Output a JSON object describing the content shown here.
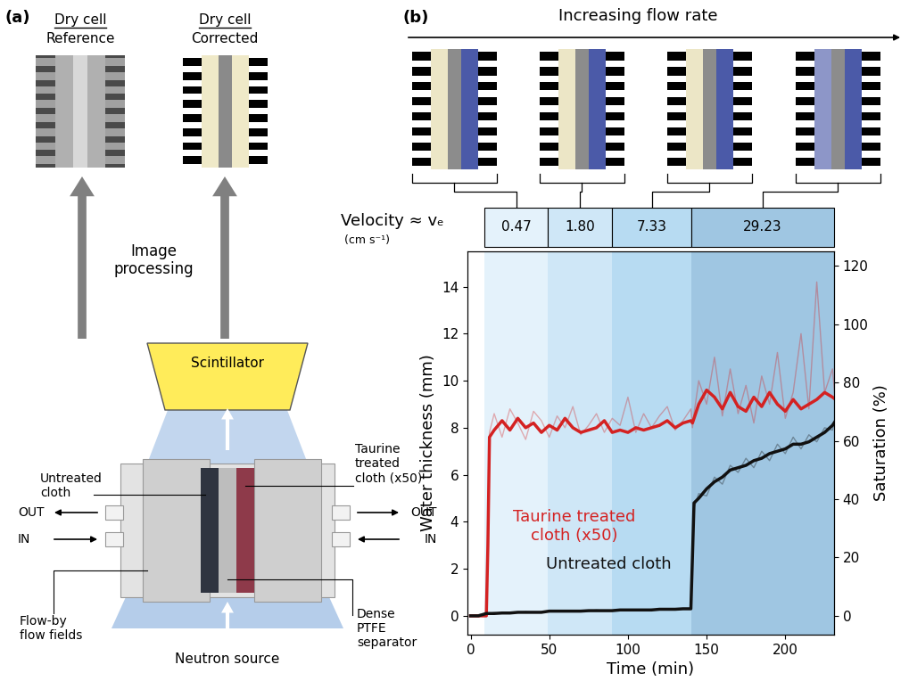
{
  "panel_labels": [
    "(a)",
    "(b)"
  ],
  "panel_a": {
    "images": [
      {
        "title": "Dry cell",
        "subtitle": "Reference"
      },
      {
        "title": "Dry cell",
        "subtitle": "Corrected"
      }
    ],
    "arrow_label": "Image\nprocessing",
    "scintillator": "Scintillator",
    "source": "Neutron source",
    "untreated": "Untreated\ncloth",
    "treated": "Taurine\ntreated\ncloth (x50)",
    "out": "OUT",
    "in": "IN",
    "flow_fields": "Flow-by\nflow fields",
    "separator": "Dense\nPTFE\nseparator"
  },
  "flow_header": "Increasing flow rate",
  "chart_data": {
    "type": "line",
    "xlabel": "Time (min)",
    "ylabel": "Water thickness (mm)",
    "y2label": "Saturation (%)",
    "xlim": [
      -2,
      231
    ],
    "ylim": [
      -0.8,
      15.5
    ],
    "y2lim": [
      -6.5,
      125
    ],
    "xticks": [
      0,
      50,
      100,
      150,
      200
    ],
    "yticks": [
      0,
      2,
      4,
      6,
      8,
      10,
      12,
      14
    ],
    "y2ticks": [
      0,
      20,
      40,
      60,
      80,
      100,
      120
    ],
    "grid": false,
    "velocity_header": {
      "label": "Velocity ≈ vₑ",
      "unit": "(cm s⁻¹)"
    },
    "velocity_regions": [
      {
        "start": 9,
        "end": 49,
        "velocity": 0.47,
        "velocity_label": "0.47",
        "color": "#e4f2fb"
      },
      {
        "start": 49,
        "end": 90,
        "velocity": 1.8,
        "velocity_label": "1.80",
        "color": "#cfe7f7"
      },
      {
        "start": 90,
        "end": 140.5,
        "velocity": 7.33,
        "velocity_label": "7.33",
        "color": "#b7dbf2"
      },
      {
        "start": 140.5,
        "end": 231,
        "velocity": 29.23,
        "velocity_label": "29.23",
        "color": "#9fc6e2"
      }
    ],
    "x": [
      0,
      5,
      10,
      11,
      12,
      15,
      20,
      25,
      30,
      35,
      40,
      45,
      50,
      55,
      60,
      65,
      70,
      75,
      80,
      85,
      90,
      95,
      100,
      105,
      110,
      115,
      120,
      125,
      130,
      135,
      140,
      141,
      142,
      145,
      150,
      155,
      160,
      165,
      170,
      175,
      180,
      185,
      190,
      195,
      200,
      205,
      210,
      215,
      220,
      225,
      230,
      232
    ],
    "series": [
      {
        "name": "Taurine treated\ncloth (x50)",
        "color": "#d42222",
        "values": [
          0,
          0,
          0,
          3,
          7.6,
          7.9,
          8.3,
          7.9,
          8.4,
          8.0,
          8.2,
          7.8,
          8.1,
          7.9,
          8.4,
          8.0,
          7.8,
          7.9,
          8.0,
          8.3,
          7.8,
          7.9,
          7.8,
          8.0,
          7.9,
          8.0,
          8.1,
          8.3,
          8.0,
          8.2,
          8.3,
          8.2,
          8.4,
          9.0,
          9.6,
          9.3,
          8.8,
          9.5,
          8.9,
          8.7,
          9.3,
          8.9,
          9.5,
          9.0,
          8.7,
          9.2,
          8.8,
          9.0,
          9.2,
          9.5,
          9.3,
          9.2
        ],
        "raw_values": [
          0,
          0,
          0,
          4,
          7.8,
          8.6,
          7.6,
          8.8,
          8.2,
          7.5,
          8.7,
          8.3,
          7.6,
          8.5,
          8.0,
          8.9,
          7.7,
          8.1,
          8.6,
          7.8,
          8.4,
          8.1,
          9.3,
          7.8,
          8.6,
          8.0,
          8.5,
          8.9,
          7.9,
          8.3,
          8.8,
          8.0,
          8.6,
          10.0,
          9.0,
          11.0,
          8.5,
          10.5,
          8.6,
          9.8,
          8.2,
          10.2,
          9.0,
          11.2,
          8.4,
          9.5,
          12.0,
          8.8,
          14.2,
          9.5,
          10.5,
          9.0
        ]
      },
      {
        "name": "Untreated cloth",
        "color": "#111111",
        "values": [
          0,
          0,
          0.1,
          0.1,
          0.1,
          0.1,
          0.12,
          0.12,
          0.15,
          0.15,
          0.15,
          0.15,
          0.2,
          0.2,
          0.2,
          0.2,
          0.2,
          0.22,
          0.22,
          0.22,
          0.22,
          0.25,
          0.25,
          0.25,
          0.25,
          0.25,
          0.28,
          0.28,
          0.28,
          0.3,
          0.3,
          2.5,
          4.8,
          5.0,
          5.4,
          5.7,
          5.9,
          6.2,
          6.3,
          6.4,
          6.6,
          6.7,
          6.9,
          7.0,
          7.1,
          7.3,
          7.3,
          7.4,
          7.6,
          7.8,
          8.1,
          8.3
        ],
        "raw_values": [
          0,
          0.05,
          0.12,
          0.08,
          0.1,
          0.14,
          0.1,
          0.15,
          0.13,
          0.18,
          0.14,
          0.17,
          0.22,
          0.18,
          0.21,
          0.2,
          0.23,
          0.2,
          0.25,
          0.21,
          0.24,
          0.27,
          0.23,
          0.26,
          0.24,
          0.28,
          0.26,
          0.3,
          0.27,
          0.31,
          0.3,
          2.8,
          4.6,
          5.2,
          5.1,
          5.9,
          5.6,
          6.4,
          6.1,
          6.7,
          6.3,
          7.0,
          6.6,
          7.3,
          6.9,
          7.6,
          7.1,
          7.7,
          7.4,
          8.0,
          7.9,
          8.5
        ]
      }
    ]
  }
}
